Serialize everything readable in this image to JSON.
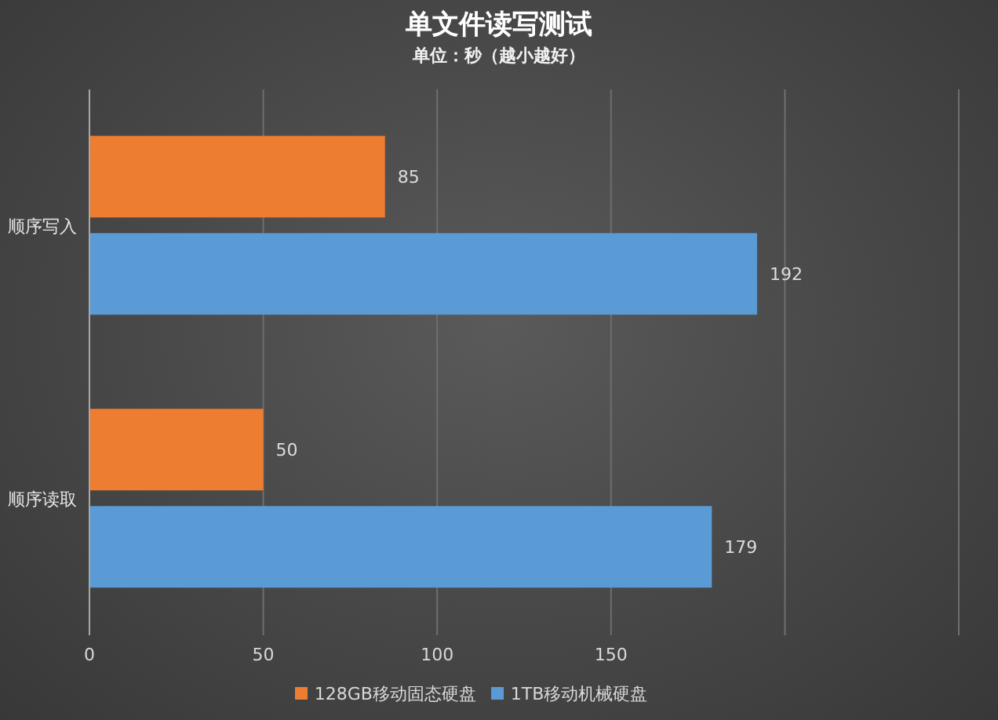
{
  "chart_data": {
    "type": "bar",
    "orientation": "horizontal",
    "title": "单文件读写测试",
    "subtitle": "单位：秒（越小越好）",
    "categories": [
      "顺序写入",
      "顺序读取"
    ],
    "series": [
      {
        "name": "128GB移动固态硬盘",
        "color": "#ed7d31",
        "values": [
          85,
          50
        ]
      },
      {
        "name": "1TB移动机械硬盘",
        "color": "#5b9bd5",
        "values": [
          192,
          179
        ]
      }
    ],
    "xlim": [
      0,
      250
    ],
    "xticks": [
      0,
      50,
      100,
      150,
      {
        "value": 200,
        "label": null
      },
      {
        "value": 250,
        "label": null
      }
    ],
    "grid": "x",
    "legend": "bottom",
    "data_labels": true
  }
}
